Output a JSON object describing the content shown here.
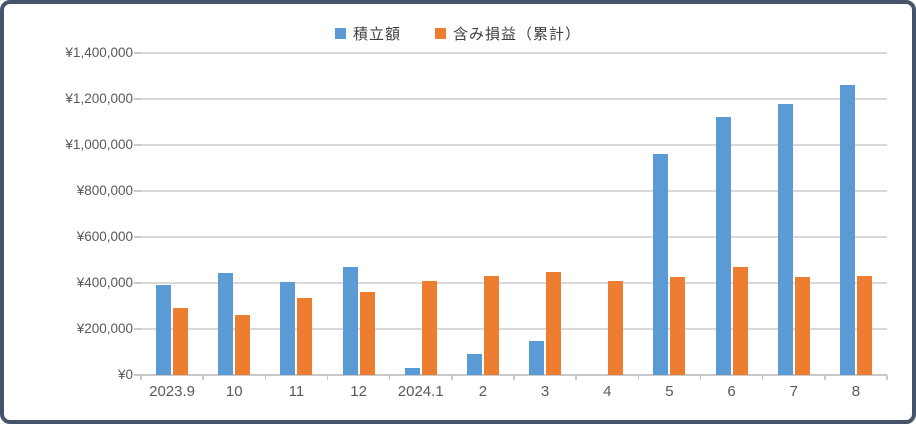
{
  "chart_data": {
    "type": "bar",
    "title": "",
    "xlabel": "",
    "ylabel": "",
    "categories": [
      "2023.9",
      "10",
      "11",
      "12",
      "2024.1",
      "2",
      "3",
      "4",
      "5",
      "6",
      "7",
      "8"
    ],
    "series": [
      {
        "name": "積立額",
        "color": "#5B9BD5",
        "values": [
          390000,
          445000,
          405000,
          470000,
          30000,
          90000,
          150000,
          0,
          960000,
          1120000,
          1180000,
          1260000
        ]
      },
      {
        "name": "含み損益（累計）",
        "color": "#ED7D31",
        "values": [
          290000,
          260000,
          335000,
          360000,
          410000,
          430000,
          450000,
          410000,
          425000,
          470000,
          425000,
          430000
        ]
      }
    ],
    "ylim": [
      0,
      1400000
    ],
    "ytick_interval": 200000,
    "ytick_labels": [
      "¥0",
      "¥200,000",
      "¥400,000",
      "¥600,000",
      "¥800,000",
      "¥1,000,000",
      "¥1,200,000",
      "¥1,400,000"
    ],
    "grid": true,
    "legend_position": "top-center"
  },
  "colors": {
    "frame_border": "#44546A",
    "gridline": "#D9D9D9",
    "axis_line": "#C9C9C9",
    "axis_text": "#595959",
    "legend_text": "#404040"
  }
}
